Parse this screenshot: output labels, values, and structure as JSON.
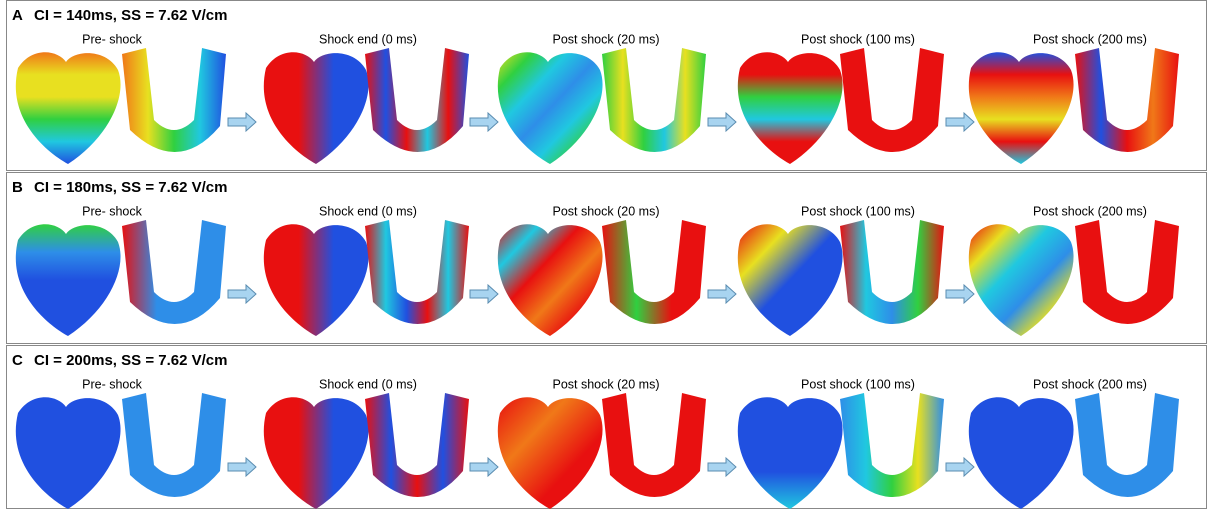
{
  "panels": [
    {
      "label": "A",
      "title": "CI = 140ms,  SS = 7.62 V/cm",
      "stages": [
        "Pre- shock",
        "Shock end (0 ms)",
        "Post shock (20 ms)",
        "Post shock (100 ms)",
        "Post shock (200 ms)"
      ]
    },
    {
      "label": "B",
      "title": "CI = 180ms,  SS = 7.62 V/cm",
      "stages": [
        "Pre- shock",
        "Shock end (0 ms)",
        "Post shock (20 ms)",
        "Post shock (100 ms)",
        "Post shock (200 ms)"
      ]
    },
    {
      "label": "C",
      "title": "CI = 200ms,  SS = 7.62 V/cm",
      "stages": [
        "Pre- shock",
        "Shock end (0 ms)",
        "Post shock (20 ms)",
        "Post shock (100 ms)",
        "Post shock (200 ms)"
      ]
    }
  ]
}
